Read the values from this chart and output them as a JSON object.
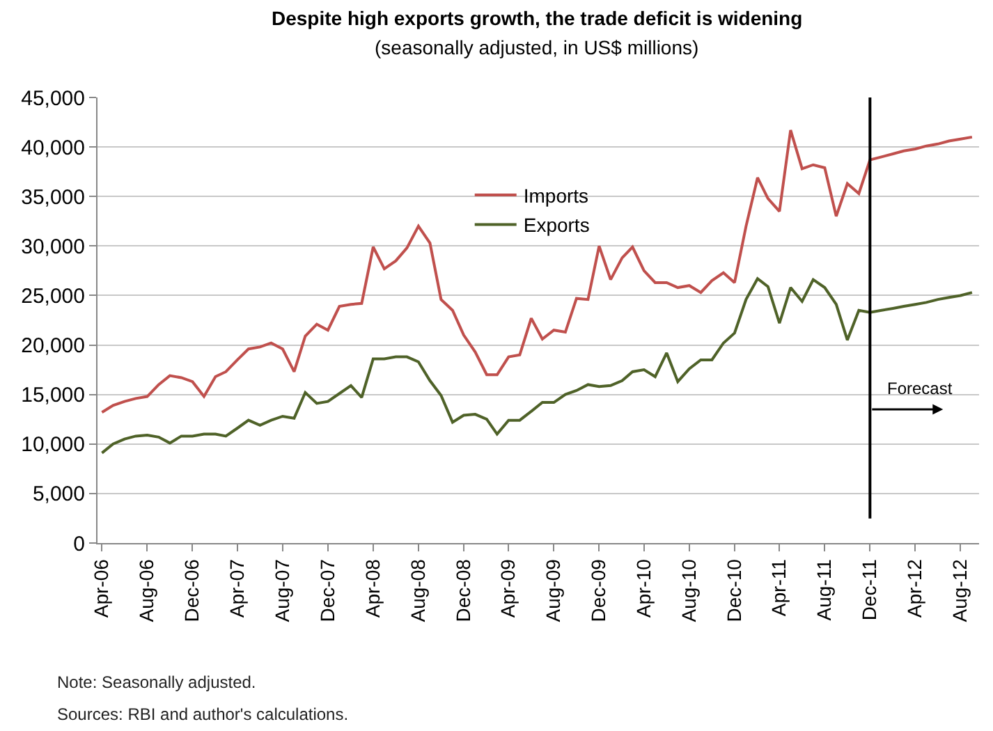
{
  "chart_data": {
    "type": "line",
    "title": "Despite high exports growth, the trade deficit is widening",
    "subtitle": "(seasonally adjusted, in US$ millions)",
    "x": [
      "2006-04",
      "2006-05",
      "2006-06",
      "2006-07",
      "2006-08",
      "2006-09",
      "2006-10",
      "2006-11",
      "2006-12",
      "2007-01",
      "2007-02",
      "2007-03",
      "2007-04",
      "2007-05",
      "2007-06",
      "2007-07",
      "2007-08",
      "2007-09",
      "2007-10",
      "2007-11",
      "2007-12",
      "2008-01",
      "2008-02",
      "2008-03",
      "2008-04",
      "2008-05",
      "2008-06",
      "2008-07",
      "2008-08",
      "2008-09",
      "2008-10",
      "2008-11",
      "2008-12",
      "2009-01",
      "2009-02",
      "2009-03",
      "2009-04",
      "2009-05",
      "2009-06",
      "2009-07",
      "2009-08",
      "2009-09",
      "2009-10",
      "2009-11",
      "2009-12",
      "2010-01",
      "2010-02",
      "2010-03",
      "2010-04",
      "2010-05",
      "2010-06",
      "2010-07",
      "2010-08",
      "2010-09",
      "2010-10",
      "2010-11",
      "2010-12",
      "2011-01",
      "2011-02",
      "2011-03",
      "2011-04",
      "2011-05",
      "2011-06",
      "2011-07",
      "2011-08",
      "2011-09",
      "2011-10",
      "2011-11",
      "2011-12",
      "2012-01",
      "2012-02",
      "2012-03",
      "2012-04",
      "2012-05",
      "2012-06",
      "2012-07",
      "2012-08",
      "2012-09"
    ],
    "series": [
      {
        "name": "Imports",
        "color": "#c0504d",
        "values": [
          13200,
          13900,
          14300,
          14600,
          14800,
          16000,
          16900,
          16700,
          16300,
          14800,
          16800,
          17300,
          18500,
          19600,
          19800,
          20200,
          19600,
          17300,
          20900,
          22100,
          21500,
          23900,
          24100,
          24200,
          29900,
          27700,
          28500,
          29800,
          32000,
          30300,
          24600,
          23500,
          21000,
          19300,
          17000,
          17000,
          18800,
          19000,
          22700,
          20600,
          21500,
          21300,
          24700,
          24600,
          30000,
          26600,
          28800,
          29900,
          27500,
          26300,
          26300,
          25800,
          26000,
          25300,
          26500,
          27300,
          26300,
          32000,
          36900,
          34800,
          33500,
          41700,
          37800,
          38200,
          37900,
          33000,
          36300,
          35300,
          38700,
          39000,
          39300,
          39600,
          39800,
          40100,
          40300,
          40600,
          40800,
          41000
        ]
      },
      {
        "name": "Exports",
        "color": "#4f6228",
        "values": [
          9100,
          10000,
          10500,
          10800,
          10900,
          10700,
          10100,
          10800,
          10800,
          11000,
          11000,
          10800,
          11600,
          12400,
          11900,
          12400,
          12800,
          12600,
          15200,
          14100,
          14300,
          15100,
          15900,
          14700,
          18600,
          18600,
          18800,
          18800,
          18300,
          16400,
          14900,
          12200,
          12900,
          13000,
          12500,
          11000,
          12400,
          12400,
          13300,
          14200,
          14200,
          15000,
          15400,
          16000,
          15800,
          15900,
          16400,
          17300,
          17500,
          16800,
          19200,
          16300,
          17600,
          18500,
          18500,
          20200,
          21200,
          24600,
          26700,
          25900,
          22200,
          25800,
          24400,
          26600,
          25800,
          24100,
          20500,
          23500,
          23300,
          23500,
          23700,
          23900,
          24100,
          24300,
          24600,
          24800,
          25000,
          25300
        ]
      }
    ],
    "xlim": [
      "2006-03-20",
      "2012-09-20"
    ],
    "xticks": [
      {
        "value": "2006-04",
        "label": "Apr-06"
      },
      {
        "value": "2006-08",
        "label": "Aug-06"
      },
      {
        "value": "2006-12",
        "label": "Dec-06"
      },
      {
        "value": "2007-04",
        "label": "Apr-07"
      },
      {
        "value": "2007-08",
        "label": "Aug-07"
      },
      {
        "value": "2007-12",
        "label": "Dec-07"
      },
      {
        "value": "2008-04",
        "label": "Apr-08"
      },
      {
        "value": "2008-08",
        "label": "Aug-08"
      },
      {
        "value": "2008-12",
        "label": "Dec-08"
      },
      {
        "value": "2009-04",
        "label": "Apr-09"
      },
      {
        "value": "2009-08",
        "label": "Aug-09"
      },
      {
        "value": "2009-12",
        "label": "Dec-09"
      },
      {
        "value": "2010-04",
        "label": "Apr-10"
      },
      {
        "value": "2010-08",
        "label": "Aug-10"
      },
      {
        "value": "2010-12",
        "label": "Dec-10"
      },
      {
        "value": "2011-04",
        "label": "Apr-11"
      },
      {
        "value": "2011-08",
        "label": "Aug-11"
      },
      {
        "value": "2011-12",
        "label": "Dec-11"
      },
      {
        "value": "2012-04",
        "label": "Apr-12"
      },
      {
        "value": "2012-08",
        "label": "Aug-12"
      }
    ],
    "ylim": [
      0,
      45000
    ],
    "yticks": [
      0,
      {
        "value": 5000,
        "label": "5,000"
      },
      {
        "value": 10000,
        "label": "10,000"
      },
      {
        "value": 15000,
        "label": "15,000"
      },
      {
        "value": 20000,
        "label": "20,000"
      },
      {
        "value": 25000,
        "label": "25,000"
      },
      {
        "value": 30000,
        "label": "30,000"
      },
      {
        "value": 35000,
        "label": "35,000"
      },
      {
        "value": 40000,
        "label": "40,000"
      },
      {
        "value": 45000,
        "label": "45,000"
      }
    ],
    "ref_lines": [
      {
        "axis": "x",
        "value": "2011-12",
        "label": "Forecast",
        "color": "#000000"
      }
    ],
    "annotations": [
      "Note: Seasonally adjusted.",
      "Sources: RBI and author's calculations."
    ],
    "grid": "y",
    "legend": "top",
    "marker": "none",
    "line_style": "solid"
  }
}
